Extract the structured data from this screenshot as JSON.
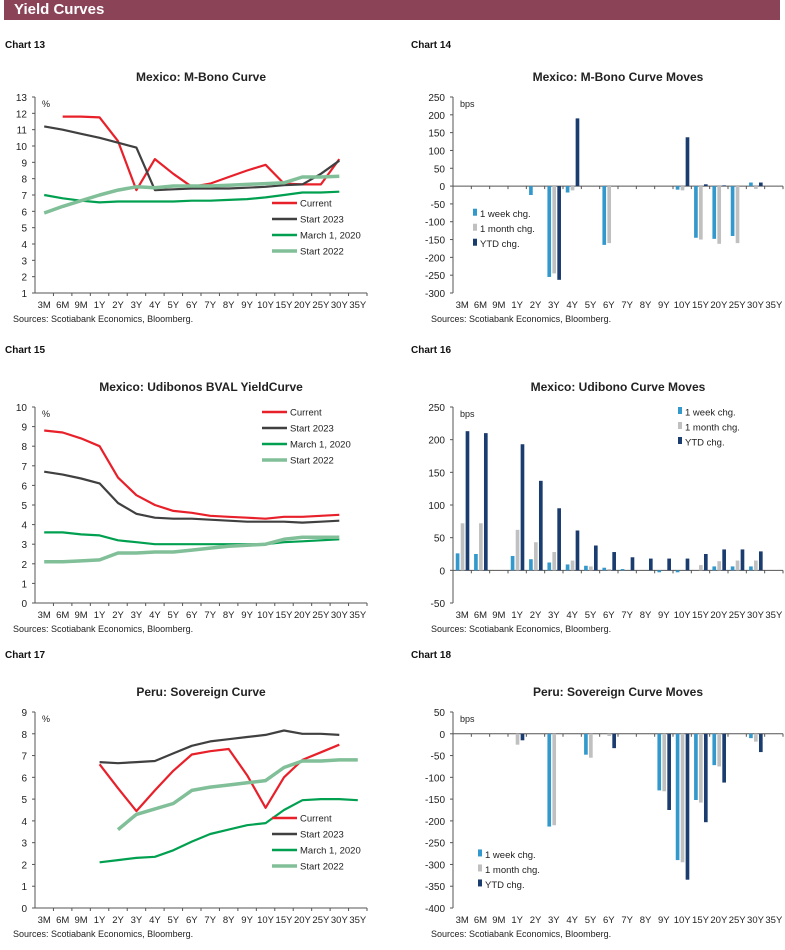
{
  "header": {
    "title": "Yield Curves"
  },
  "source": "Sources: Scotiabank Economics, Bloomberg.",
  "colors": {
    "header": "#8b4358",
    "current": "#e8202a",
    "start2023": "#404040",
    "march2020": "#00a050",
    "start2022": "#80bf98",
    "week": "#3399cc",
    "month": "#c0c0c0",
    "ytd": "#1b3c6e"
  },
  "chart_data": [
    {
      "label": "Chart 13",
      "type": "line",
      "title": "Mexico: M-Bono Curve",
      "unit": "%",
      "ylim": [
        1,
        13
      ],
      "ystep": 1,
      "legend": "bottom-right",
      "categories": [
        "3M",
        "6M",
        "9M",
        "1Y",
        "2Y",
        "3Y",
        "4Y",
        "5Y",
        "6Y",
        "7Y",
        "8Y",
        "9Y",
        "10Y",
        "15Y",
        "20Y",
        "25Y",
        "30Y",
        "35Y"
      ],
      "series": [
        {
          "name": "Current",
          "color": "#e8202a",
          "values": [
            null,
            11.8,
            11.8,
            11.75,
            10.3,
            7.3,
            9.2,
            8.3,
            7.5,
            7.7,
            8.1,
            8.5,
            8.85,
            7.7,
            7.65,
            7.65,
            9.2,
            null
          ]
        },
        {
          "name": "Start 2023",
          "color": "#404040",
          "values": [
            11.2,
            11.0,
            10.75,
            10.5,
            10.2,
            9.9,
            7.3,
            7.35,
            7.4,
            7.4,
            7.4,
            7.45,
            7.5,
            7.6,
            7.65,
            8.3,
            9.1,
            null
          ]
        },
        {
          "name": "March 1, 2020",
          "color": "#00a050",
          "values": [
            7.0,
            6.8,
            6.65,
            6.55,
            6.6,
            6.6,
            6.6,
            6.6,
            6.65,
            6.65,
            6.7,
            6.75,
            6.85,
            7.0,
            7.15,
            7.15,
            7.2,
            null
          ]
        },
        {
          "name": "Start 2022",
          "color": "#80bf98",
          "values": [
            5.9,
            6.3,
            6.65,
            7.0,
            7.3,
            7.5,
            7.45,
            7.55,
            7.55,
            7.55,
            7.6,
            7.65,
            7.7,
            7.75,
            8.1,
            8.1,
            8.15,
            null
          ]
        }
      ]
    },
    {
      "label": "Chart 14",
      "type": "bar",
      "title": "Mexico: M-Bono Curve Moves",
      "unit": "bps",
      "ylim": [
        -300,
        250
      ],
      "ystep": 50,
      "legend": "middle-left",
      "categories": [
        "3M",
        "6M",
        "9M",
        "1Y",
        "2Y",
        "3Y",
        "4Y",
        "5Y",
        "6Y",
        "7Y",
        "8Y",
        "9Y",
        "10Y",
        "15Y",
        "20Y",
        "25Y",
        "30Y",
        "35Y"
      ],
      "series": [
        {
          "name": "1 week chg.",
          "color": "#3399cc",
          "values": [
            0,
            0,
            0,
            0,
            -25,
            -255,
            -18,
            0,
            -165,
            0,
            0,
            0,
            -10,
            -145,
            -148,
            -140,
            10,
            0
          ]
        },
        {
          "name": "1 month chg.",
          "color": "#c0c0c0",
          "values": [
            0,
            0,
            0,
            0,
            0,
            -245,
            -12,
            0,
            -160,
            0,
            0,
            0,
            -12,
            -150,
            -162,
            -160,
            -8,
            0
          ]
        },
        {
          "name": "YTD chg.",
          "color": "#1b3c6e",
          "values": [
            0,
            0,
            0,
            0,
            0,
            -263,
            190,
            0,
            0,
            0,
            0,
            0,
            137,
            5,
            2,
            0,
            10,
            0
          ]
        }
      ]
    },
    {
      "label": "Chart 15",
      "type": "line",
      "title": "Mexico: Udibonos BVAL YieldCurve",
      "unit": "%",
      "ylim": [
        0,
        10
      ],
      "ystep": 1,
      "legend": "top-right",
      "categories": [
        "3M",
        "6M",
        "9M",
        "1Y",
        "2Y",
        "3Y",
        "4Y",
        "5Y",
        "6Y",
        "7Y",
        "8Y",
        "9Y",
        "10Y",
        "15Y",
        "20Y",
        "25Y",
        "30Y",
        "35Y"
      ],
      "series": [
        {
          "name": "Current",
          "color": "#e8202a",
          "values": [
            8.8,
            8.7,
            8.4,
            8.0,
            6.4,
            5.5,
            5.0,
            4.7,
            4.6,
            4.45,
            4.4,
            4.35,
            4.3,
            4.4,
            4.4,
            4.45,
            4.5,
            null
          ]
        },
        {
          "name": "Start 2023",
          "color": "#404040",
          "values": [
            6.7,
            6.55,
            6.35,
            6.1,
            5.1,
            4.55,
            4.35,
            4.3,
            4.3,
            4.25,
            4.2,
            4.15,
            4.15,
            4.15,
            4.1,
            4.15,
            4.2,
            null
          ]
        },
        {
          "name": "March 1, 2020",
          "color": "#00a050",
          "values": [
            3.6,
            3.6,
            3.5,
            3.45,
            3.2,
            3.1,
            3.0,
            3.0,
            3.0,
            3.0,
            3.0,
            3.0,
            3.0,
            3.1,
            3.15,
            3.2,
            3.25,
            null
          ]
        },
        {
          "name": "Start 2022",
          "color": "#80bf98",
          "values": [
            2.1,
            2.1,
            2.15,
            2.2,
            2.55,
            2.55,
            2.6,
            2.6,
            2.7,
            2.8,
            2.9,
            2.95,
            3.0,
            3.25,
            3.35,
            3.35,
            3.35,
            null
          ]
        }
      ]
    },
    {
      "label": "Chart 16",
      "type": "bar",
      "title": "Mexico: Udibono Curve Moves",
      "unit": "bps",
      "ylim": [
        -50,
        250
      ],
      "ystep": 50,
      "legend": "top-right",
      "categories": [
        "3M",
        "6M",
        "9M",
        "1Y",
        "2Y",
        "3Y",
        "4Y",
        "5Y",
        "6Y",
        "7Y",
        "8Y",
        "9Y",
        "10Y",
        "15Y",
        "20Y",
        "25Y",
        "30Y",
        "35Y"
      ],
      "series": [
        {
          "name": "1 week chg.",
          "color": "#3399cc",
          "values": [
            26,
            25,
            0,
            22,
            17,
            12,
            9,
            7,
            4,
            2,
            0,
            -3,
            -3,
            0,
            6,
            6,
            6,
            0
          ]
        },
        {
          "name": "1 month chg.",
          "color": "#c0c0c0",
          "values": [
            72,
            72,
            0,
            62,
            43,
            28,
            15,
            6,
            2,
            0,
            0,
            0,
            0,
            8,
            14,
            15,
            15,
            0
          ]
        },
        {
          "name": "YTD chg.",
          "color": "#1b3c6e",
          "values": [
            213,
            210,
            0,
            193,
            137,
            95,
            61,
            38,
            28,
            20,
            18,
            18,
            18,
            25,
            32,
            32,
            29,
            0
          ]
        }
      ]
    },
    {
      "label": "Chart 17",
      "type": "line",
      "title": "Peru: Sovereign Curve",
      "unit": "%",
      "ylim": [
        0,
        9
      ],
      "ystep": 1,
      "legend": "bottom-right",
      "categories": [
        "3M",
        "6M",
        "9M",
        "1Y",
        "2Y",
        "3Y",
        "4Y",
        "5Y",
        "6Y",
        "7Y",
        "8Y",
        "9Y",
        "10Y",
        "15Y",
        "20Y",
        "25Y",
        "30Y",
        "35Y"
      ],
      "series": [
        {
          "name": "Current",
          "color": "#e8202a",
          "values": [
            null,
            null,
            null,
            6.6,
            5.5,
            4.45,
            5.4,
            6.3,
            7.05,
            7.2,
            7.3,
            6.1,
            4.6,
            6.0,
            6.8,
            7.15,
            7.5,
            null
          ]
        },
        {
          "name": "Start 2023",
          "color": "#404040",
          "values": [
            null,
            null,
            null,
            6.7,
            6.65,
            6.7,
            6.75,
            7.1,
            7.45,
            7.65,
            7.75,
            7.85,
            7.95,
            8.15,
            8.0,
            8.0,
            7.95,
            null
          ]
        },
        {
          "name": "March 1, 2020",
          "color": "#00a050",
          "values": [
            null,
            null,
            null,
            2.1,
            2.2,
            2.3,
            2.35,
            2.65,
            3.05,
            3.4,
            3.6,
            3.8,
            3.9,
            4.5,
            4.95,
            5.0,
            5.0,
            4.95
          ]
        },
        {
          "name": "Start 2022",
          "color": "#80bf98",
          "values": [
            null,
            null,
            null,
            null,
            3.6,
            4.3,
            4.55,
            4.8,
            5.4,
            5.55,
            5.65,
            5.75,
            5.85,
            6.45,
            6.75,
            6.75,
            6.8,
            6.8
          ]
        }
      ]
    },
    {
      "label": "Chart 18",
      "type": "bar",
      "title": "Peru: Sovereign Curve Moves",
      "unit": "bps",
      "ylim": [
        -400,
        50
      ],
      "ystep": 50,
      "legend": "bottom-left",
      "categories": [
        "3M",
        "6M",
        "9M",
        "1Y",
        "2Y",
        "3Y",
        "4Y",
        "5Y",
        "6Y",
        "7Y",
        "8Y",
        "9Y",
        "10Y",
        "15Y",
        "20Y",
        "25Y",
        "30Y",
        "35Y"
      ],
      "series": [
        {
          "name": "1 week chg.",
          "color": "#3399cc",
          "values": [
            0,
            0,
            0,
            0,
            0,
            -213,
            0,
            -48,
            0,
            0,
            0,
            -130,
            -290,
            -152,
            -72,
            0,
            -10,
            0
          ]
        },
        {
          "name": "1 month chg.",
          "color": "#c0c0c0",
          "values": [
            0,
            0,
            0,
            -25,
            0,
            -210,
            0,
            -55,
            -5,
            0,
            0,
            -132,
            -295,
            -158,
            -75,
            0,
            -18,
            0
          ]
        },
        {
          "name": "YTD chg.",
          "color": "#1b3c6e",
          "values": [
            0,
            0,
            0,
            -15,
            0,
            0,
            0,
            0,
            -33,
            0,
            0,
            -175,
            -335,
            -203,
            -112,
            0,
            -42,
            0
          ]
        }
      ]
    }
  ]
}
